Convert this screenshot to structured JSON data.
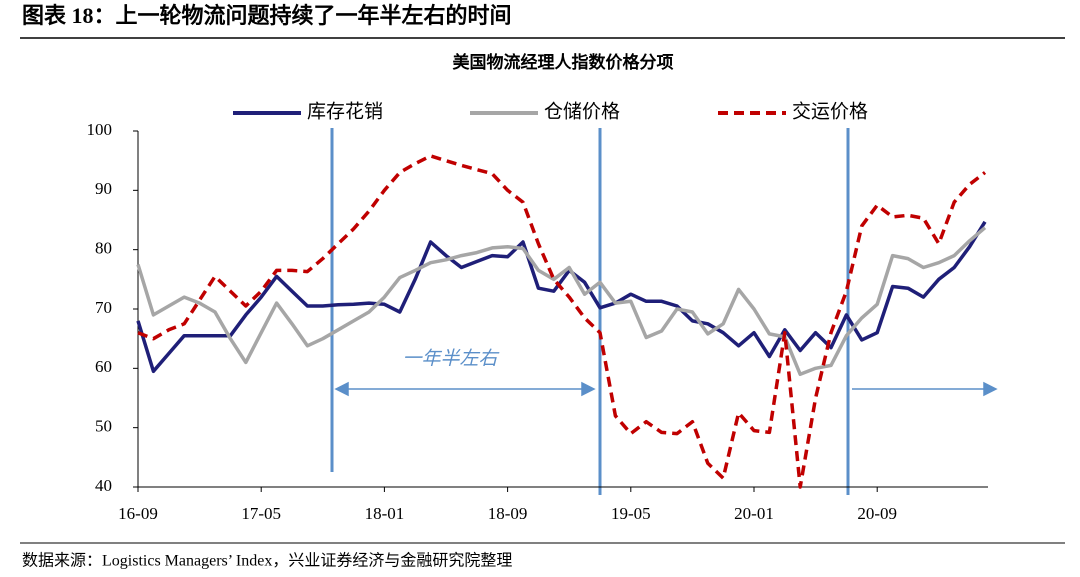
{
  "heading": "图表 18：上一轮物流问题持续了一年半左右的时间",
  "source": "数据来源：Logistics Managers’ Index，兴业证券经济与金融研究院整理",
  "chart_data": {
    "type": "line",
    "title": "美国物流经理人指数价格分项",
    "categories": [
      "16-09",
      null,
      null,
      null,
      null,
      null,
      null,
      null,
      "17-05",
      null,
      null,
      null,
      null,
      null,
      null,
      null,
      "18-01",
      null,
      null,
      null,
      null,
      null,
      null,
      null,
      "18-09",
      null,
      null,
      null,
      null,
      null,
      null,
      null,
      "19-05",
      null,
      null,
      null,
      null,
      null,
      null,
      null,
      "20-01",
      null,
      null,
      null,
      null,
      null,
      null,
      null,
      "20-09",
      null,
      null,
      null,
      null,
      null,
      null,
      null
    ],
    "series": [
      {
        "name": "库存花销",
        "color": "#1f1f78",
        "values": [
          68,
          59.5,
          62.5,
          65.5,
          65.5,
          65.5,
          65.5,
          69,
          72,
          75.5,
          73,
          70.5,
          70.5,
          70.7,
          70.8,
          71,
          70.8,
          69.5,
          75,
          81.3,
          79,
          77,
          78,
          79,
          78.8,
          81.3,
          73.5,
          73,
          76.5,
          74.5,
          70.2,
          71,
          72.5,
          71.3,
          71.3,
          70.5,
          68,
          67.5,
          66,
          63.8,
          66,
          62,
          66.5,
          63,
          66,
          63.5,
          69,
          64.8,
          66,
          73.8,
          73.5,
          72,
          75,
          77,
          80.5,
          84.7
        ]
      },
      {
        "name": "仓储价格",
        "color": "#a6a6a6",
        "values": [
          77.5,
          69,
          70.5,
          72,
          71,
          69.5,
          65,
          61,
          66,
          71,
          67.5,
          63.8,
          65,
          66.5,
          68,
          69.5,
          72,
          75.3,
          76.5,
          77.8,
          78.3,
          79,
          79.5,
          80.3,
          80.5,
          80.2,
          76.5,
          75,
          77,
          72.5,
          74.5,
          71,
          71.3,
          65.2,
          66.3,
          70,
          69.5,
          65.8,
          67.5,
          73.3,
          70,
          65.8,
          65.3,
          59,
          60,
          60.5,
          65.5,
          68.5,
          70.8,
          79,
          78.5,
          77,
          77.8,
          79,
          81.5,
          83.7
        ]
      },
      {
        "name": "交运价格",
        "color": "#c00000",
        "dashed": true,
        "values": [
          66,
          65,
          66.5,
          67.5,
          71.5,
          75.5,
          73,
          70.5,
          73,
          76.5,
          76.5,
          76.3,
          78.5,
          81,
          83.5,
          86.5,
          90,
          93,
          94.5,
          95.8,
          95,
          94.2,
          93.5,
          92.8,
          90,
          88,
          81,
          75,
          72,
          68.5,
          66,
          52,
          49,
          51,
          49.2,
          49,
          51,
          44,
          41.5,
          52.5,
          49.5,
          49.2,
          66,
          40,
          55,
          66,
          73,
          84,
          87.5,
          85.5,
          85.8,
          85.3,
          81,
          88,
          91,
          93
        ]
      }
    ],
    "annotation": "一年半左右",
    "ylim": [
      40,
      100
    ],
    "yticks": [
      40,
      50,
      60,
      70,
      80,
      90,
      100
    ],
    "grid": false
  }
}
